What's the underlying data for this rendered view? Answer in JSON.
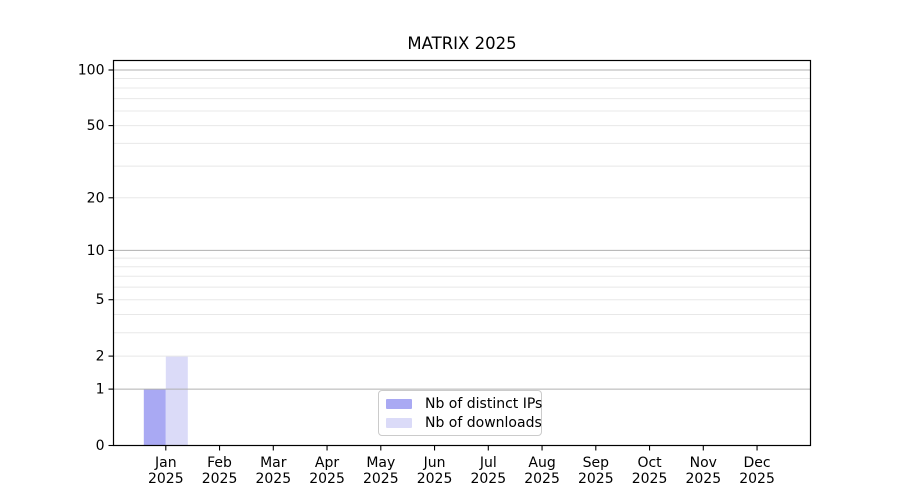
{
  "chart_data": {
    "type": "bar",
    "title": "MATRIX 2025",
    "categories": [
      "Jan",
      "Feb",
      "Mar",
      "Apr",
      "May",
      "Jun",
      "Jul",
      "Aug",
      "Sep",
      "Oct",
      "Nov",
      "Dec"
    ],
    "year": "2025",
    "series": [
      {
        "name": "Nb of distinct IPs",
        "color": "#a9a9f3",
        "values": [
          1,
          0,
          0,
          0,
          0,
          0,
          0,
          0,
          0,
          0,
          0,
          0
        ]
      },
      {
        "name": "Nb of downloads",
        "color": "#dbdbf8",
        "values": [
          2,
          0,
          0,
          0,
          0,
          0,
          0,
          0,
          0,
          0,
          0,
          0
        ]
      }
    ],
    "yscale": "log1p",
    "ylim": [
      0,
      113
    ],
    "y_ticks": [
      "0",
      "1",
      "2",
      "5",
      "10",
      "20",
      "50",
      "100"
    ],
    "y_tick_values": [
      0,
      1,
      2,
      5,
      10,
      20,
      50,
      100
    ],
    "y_major_grid": [
      1,
      10,
      100
    ],
    "y_minor_grid": [
      2,
      3,
      4,
      5,
      6,
      7,
      8,
      9,
      20,
      30,
      40,
      50,
      60,
      70,
      80,
      90
    ],
    "grid": true,
    "legend_position": "bottom-center"
  },
  "colors": {
    "bar_distinct_ips": "#a9a9f3",
    "bar_downloads": "#dbdbf8",
    "major_grid": "#b0b0b0",
    "minor_grid": "#e8e8e8",
    "spine": "#000000",
    "tick_text": "#000000",
    "legend_border": "#cbcbcb",
    "background": "#ffffff"
  }
}
